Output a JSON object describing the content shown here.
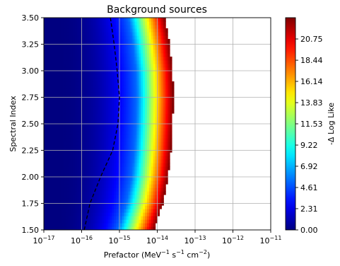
{
  "chart_data": {
    "type": "heatmap",
    "title": "Background sources",
    "xlabel": "Prefactor (MeV",
    "xlabel_unit_parts": [
      "−1",
      " s",
      "−1",
      " cm",
      "−2",
      ")"
    ],
    "ylabel": "Spectral Index",
    "x_scale": "log",
    "xlim": [
      1e-17,
      1e-11
    ],
    "ylim": [
      1.5,
      3.5
    ],
    "grid": true,
    "x_ticks": [
      {
        "value": 1e-17,
        "base": "10",
        "exp": "−17"
      },
      {
        "value": 1e-16,
        "base": "10",
        "exp": "−16"
      },
      {
        "value": 1e-15,
        "base": "10",
        "exp": "−15"
      },
      {
        "value": 1e-14,
        "base": "10",
        "exp": "−14"
      },
      {
        "value": 1e-13,
        "base": "10",
        "exp": "−13"
      },
      {
        "value": 1e-12,
        "base": "10",
        "exp": "−12"
      },
      {
        "value": 1e-11,
        "base": "10",
        "exp": "−11"
      }
    ],
    "y_ticks": [
      "1.50",
      "1.75",
      "2.00",
      "2.25",
      "2.50",
      "2.75",
      "3.00",
      "3.25",
      "3.50"
    ],
    "colorbar": {
      "label": "-Δ Log Like",
      "colormap": "jet",
      "range": [
        0,
        23.06
      ],
      "ticks": [
        "0.00",
        "2.31",
        "4.61",
        "6.92",
        "9.22",
        "11.53",
        "13.83",
        "16.14",
        "18.44",
        "20.75"
      ]
    },
    "surface": {
      "peak_x_log10": -16.9,
      "band_start_log10": [
        {
          "y": 1.5,
          "x": -15.05
        },
        {
          "y": 1.75,
          "x": -14.82
        },
        {
          "y": 2.0,
          "x": -14.68
        },
        {
          "y": 2.25,
          "x": -14.6
        },
        {
          "y": 2.5,
          "x": -14.56
        },
        {
          "y": 2.75,
          "x": -14.54
        },
        {
          "y": 3.0,
          "x": -14.56
        },
        {
          "y": 3.25,
          "x": -14.64
        },
        {
          "y": 3.5,
          "x": -14.76
        }
      ],
      "band_width_dex": 0.96
    },
    "contour": {
      "style": "dashed",
      "color": "#000000",
      "points": [
        {
          "x_log10": -15.93,
          "y": 1.5
        },
        {
          "x_log10": -15.78,
          "y": 1.75
        },
        {
          "x_log10": -15.5,
          "y": 2.0
        },
        {
          "x_log10": -15.18,
          "y": 2.25
        },
        {
          "x_log10": -15.04,
          "y": 2.5
        },
        {
          "x_log10": -15.0,
          "y": 2.75
        },
        {
          "x_log10": -15.06,
          "y": 3.0
        },
        {
          "x_log10": -15.14,
          "y": 3.25
        },
        {
          "x_log10": -15.24,
          "y": 3.5
        }
      ]
    }
  }
}
